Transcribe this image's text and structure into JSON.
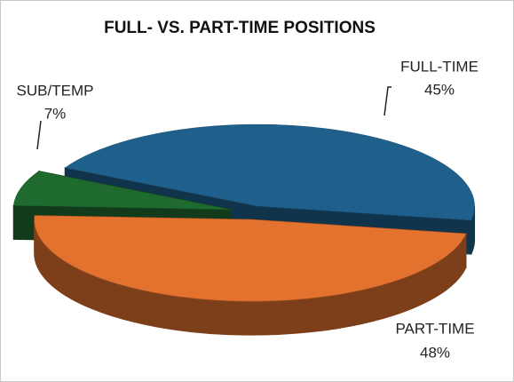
{
  "chart_data": {
    "type": "pie3d",
    "title": "FULL- VS. PART-TIME POSITIONS",
    "categories": [
      "FULL-TIME",
      "PART-TIME",
      "SUB/TEMP"
    ],
    "values": [
      45,
      48,
      7
    ],
    "value_labels": [
      "45%",
      "48%",
      "7%"
    ],
    "colors": [
      "#1f5f8c",
      "#e3722f",
      "#1f6b2f"
    ]
  }
}
